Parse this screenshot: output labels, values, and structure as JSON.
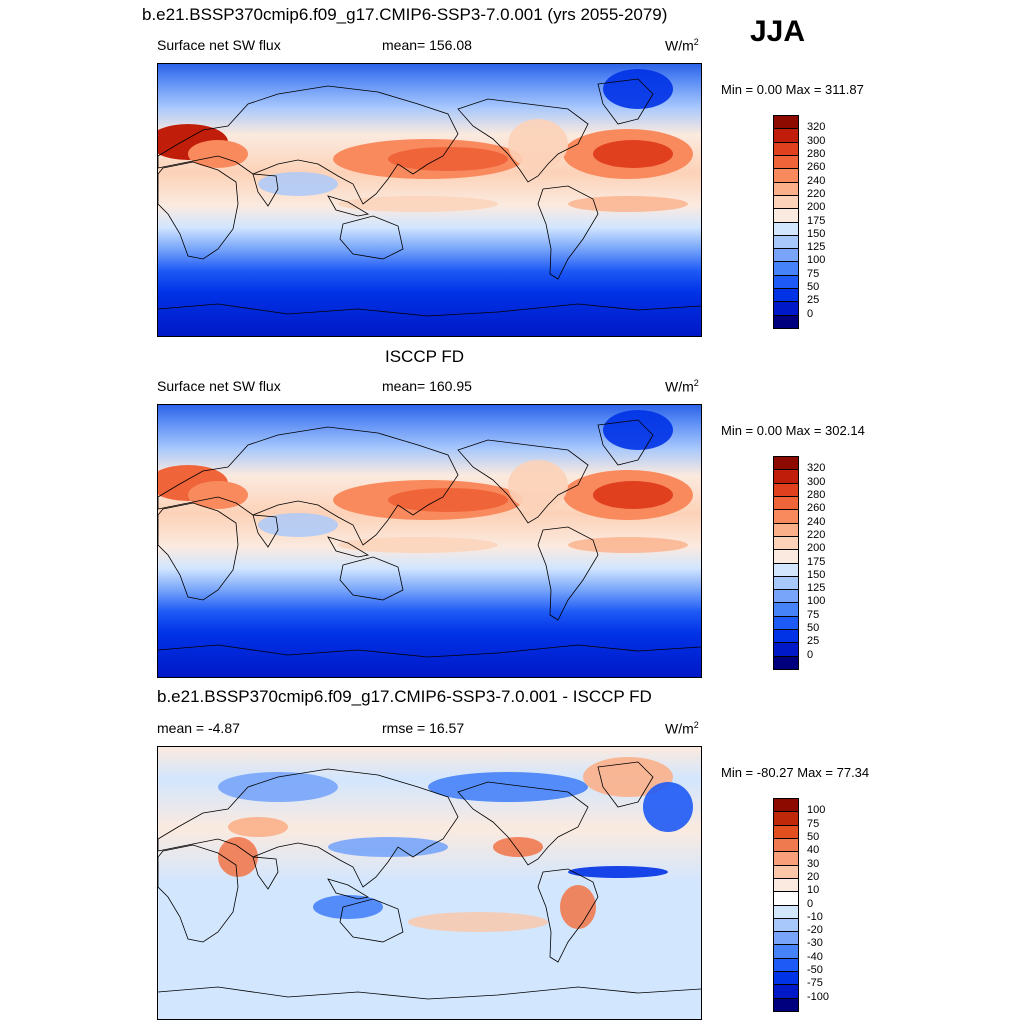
{
  "season": "JJA",
  "panels": [
    {
      "title": "b.e21.BSSP370cmip6.f09_g17.CMIP6-SSP3-7.0.001 (yrs 2055-2079)",
      "left_label": "Surface net SW flux",
      "center_label": "mean= 156.08",
      "units": "W/m",
      "units_sup": "2",
      "minmax": "Min =   0.00 Max = 311.87",
      "colorbar_labels": [
        "320",
        "300",
        "280",
        "260",
        "240",
        "220",
        "200",
        "175",
        "150",
        "125",
        "100",
        "75",
        "50",
        "25",
        "0"
      ]
    },
    {
      "title": "ISCCP FD",
      "left_label": "Surface net SW flux",
      "center_label": "mean= 160.95",
      "units": "W/m",
      "units_sup": "2",
      "minmax": "Min =   0.00 Max = 302.14",
      "colorbar_labels": [
        "320",
        "300",
        "280",
        "260",
        "240",
        "220",
        "200",
        "175",
        "150",
        "125",
        "100",
        "75",
        "50",
        "25",
        "0"
      ]
    },
    {
      "title": "b.e21.BSSP370cmip6.f09_g17.CMIP6-SSP3-7.0.001 - ISCCP FD",
      "left_label": "mean =  -4.87",
      "center_label": "rmse =  16.57",
      "units": "W/m",
      "units_sup": "2",
      "minmax": "Min = -80.27 Max =  77.34",
      "colorbar_labels": [
        "100",
        "75",
        "50",
        "40",
        "30",
        "20",
        "10",
        "0",
        "-10",
        "-20",
        "-30",
        "-40",
        "-50",
        "-75",
        "-100"
      ]
    }
  ],
  "colors": {
    "abs_scale": [
      "#00007f",
      "#0019c8",
      "#0032e6",
      "#1e5af5",
      "#4682f8",
      "#78a5fa",
      "#a8c8fc",
      "#d2e6fe",
      "#fbeadf",
      "#fcd2b8",
      "#fbb08a",
      "#f98a5e",
      "#f0643a",
      "#e1401e",
      "#c01e0a",
      "#8c0a00"
    ],
    "diff_scale": [
      "#00007f",
      "#0019c8",
      "#0032e6",
      "#1e5af5",
      "#4682f8",
      "#78a5fa",
      "#a8c8fc",
      "#d2e6fe",
      "#ffffff",
      "#fbeadf",
      "#fcc7a8",
      "#f9a07a",
      "#f07a50",
      "#e1501e",
      "#c0280a",
      "#8c0a00"
    ]
  }
}
